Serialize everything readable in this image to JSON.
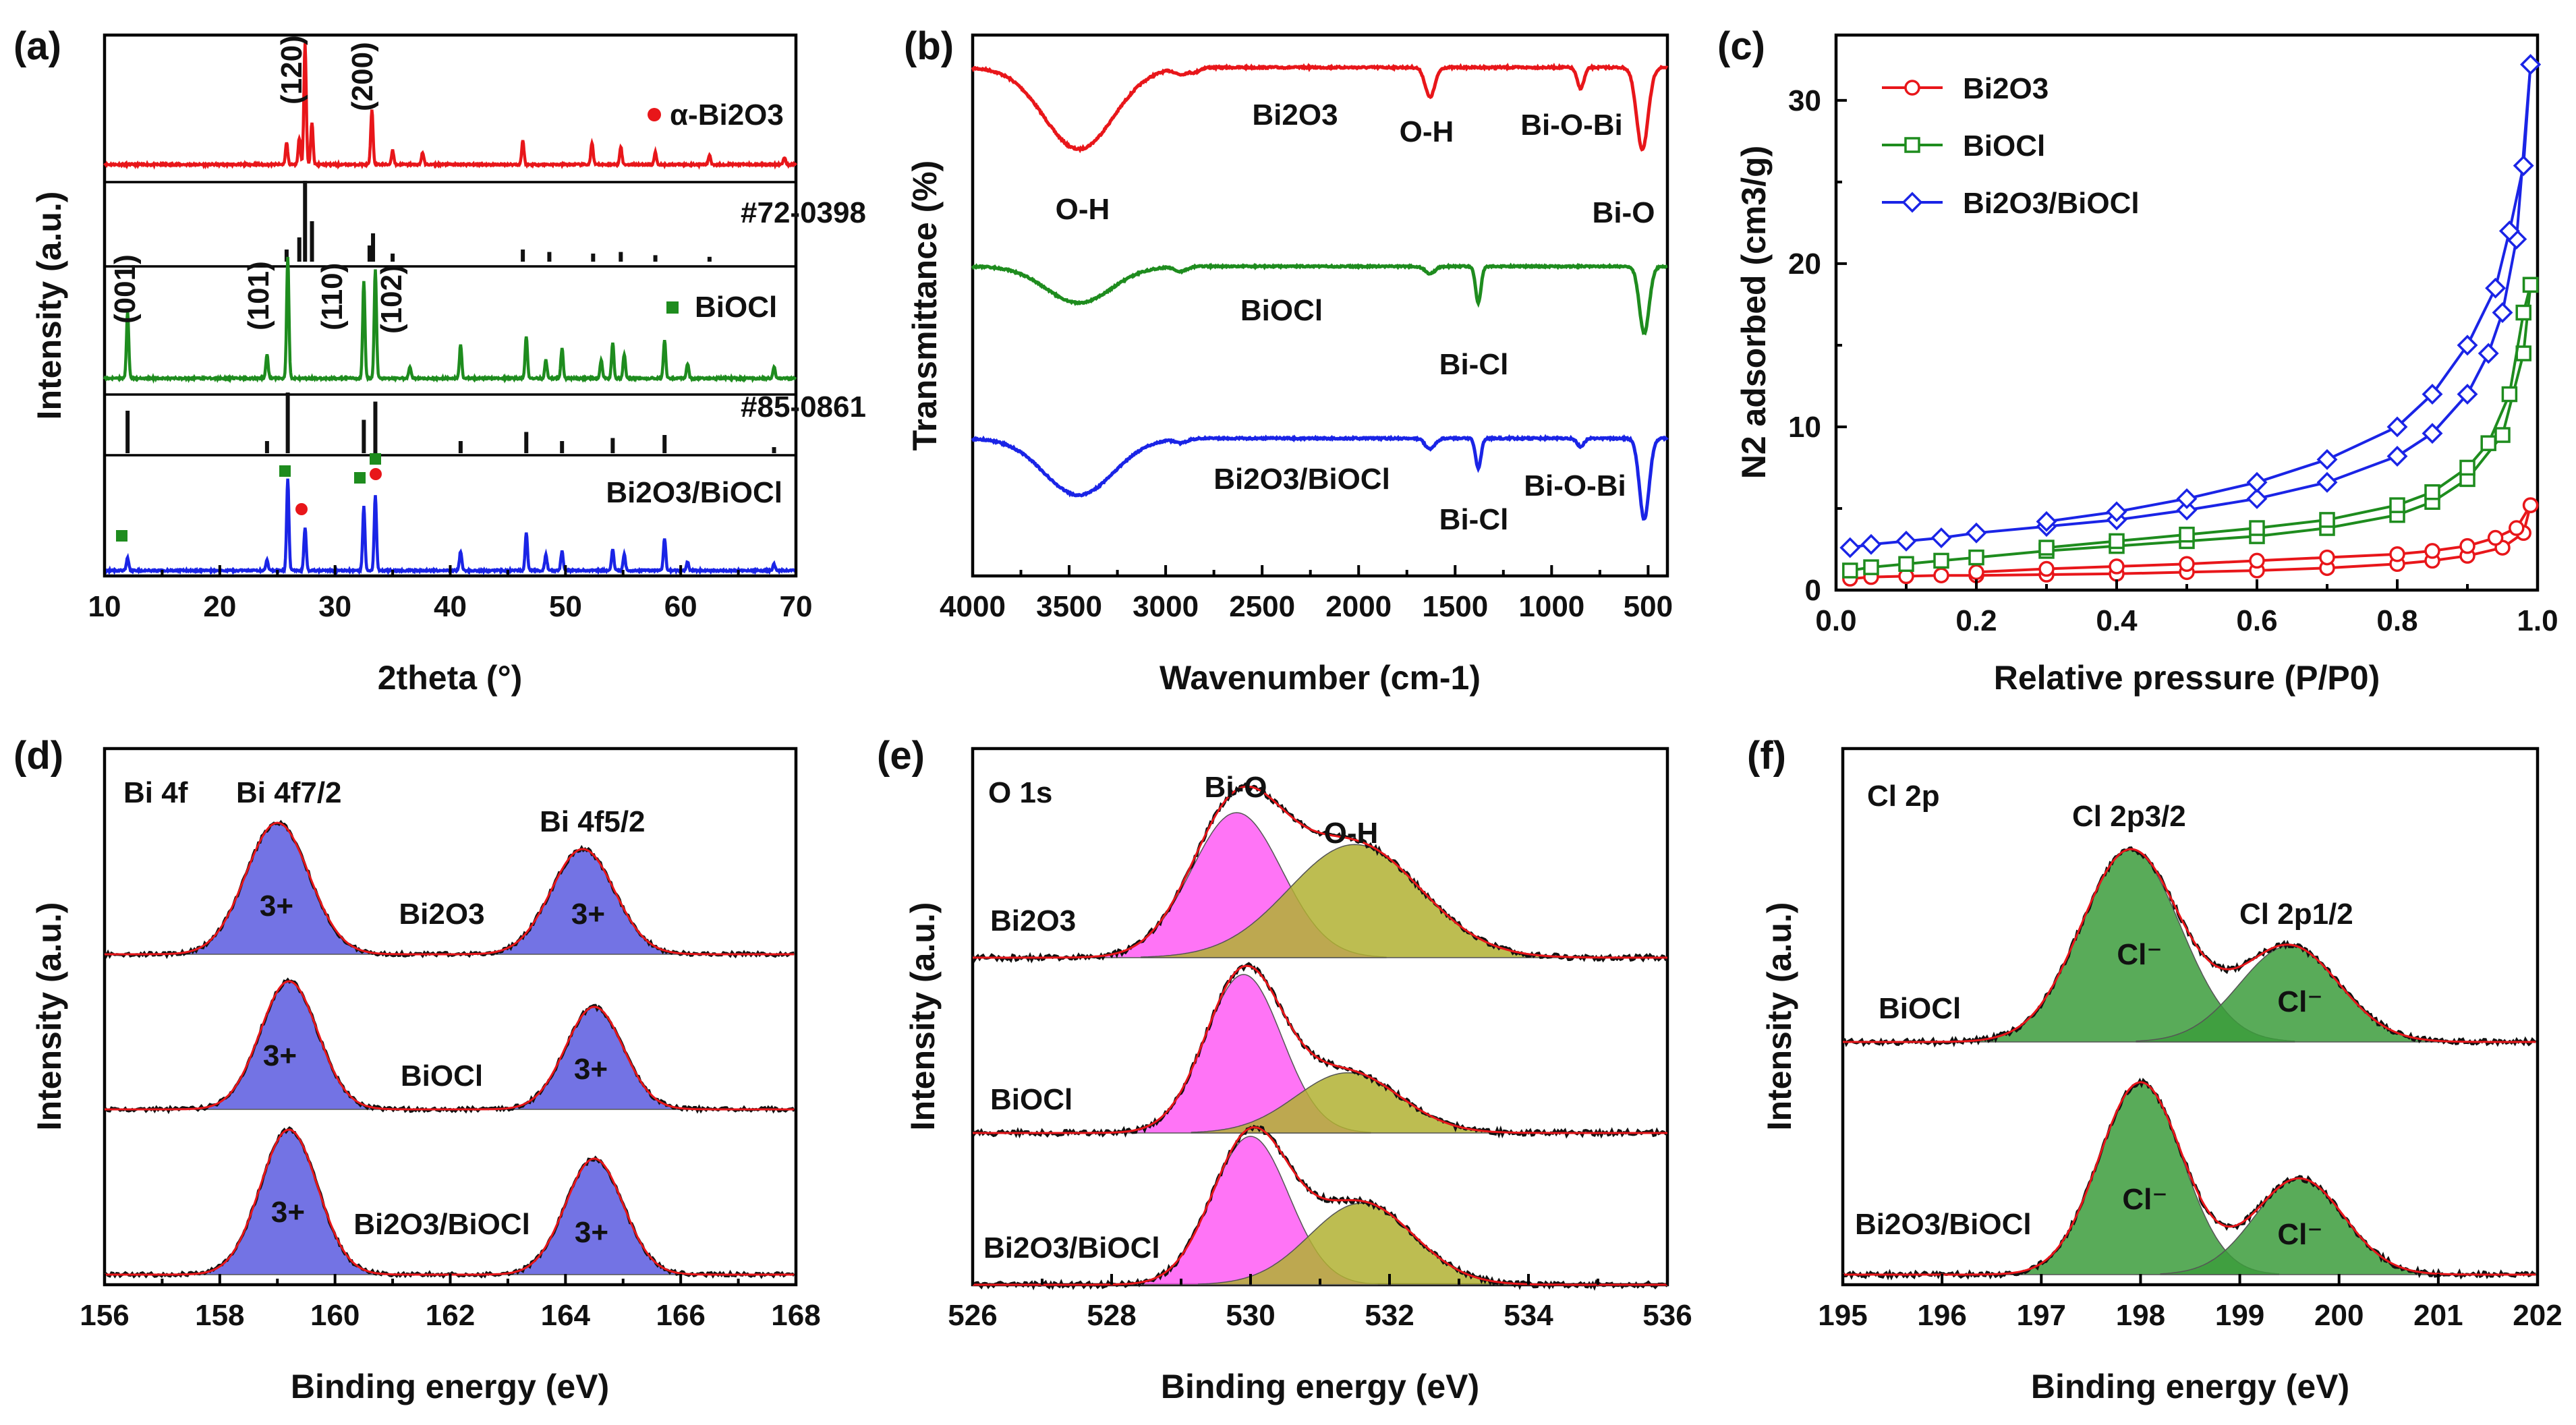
{
  "chart_data": [
    {
      "panel": "(a)",
      "type": "line",
      "xlabel": "2theta (°)",
      "ylabel": "Intensity (a.u.)",
      "xlim": [
        10,
        70
      ],
      "xticks": [
        "10",
        "20",
        "30",
        "40",
        "50",
        "60",
        "70"
      ],
      "series": [
        {
          "name": "α-Bi2O3",
          "color": "#e8161a",
          "kind": "pattern",
          "peaks": [
            [
              25.8,
              0.18
            ],
            [
              26.9,
              0.22
            ],
            [
              27.4,
              1.0
            ],
            [
              28.0,
              0.35
            ],
            [
              33.2,
              0.45
            ],
            [
              35.0,
              0.12
            ],
            [
              37.6,
              0.1
            ],
            [
              46.3,
              0.2
            ],
            [
              52.3,
              0.18
            ],
            [
              54.8,
              0.15
            ],
            [
              57.8,
              0.1
            ],
            [
              62.5,
              0.08
            ],
            [
              69.0,
              0.06
            ]
          ]
        },
        {
          "name": "#72-0398",
          "color": "#111111",
          "kind": "sticks",
          "peaks": [
            [
              25.8,
              0.15
            ],
            [
              26.9,
              0.3
            ],
            [
              27.4,
              1.0
            ],
            [
              28.0,
              0.5
            ],
            [
              33.0,
              0.2
            ],
            [
              33.3,
              0.35
            ],
            [
              35.0,
              0.1
            ],
            [
              46.3,
              0.15
            ],
            [
              48.6,
              0.12
            ],
            [
              52.4,
              0.1
            ],
            [
              54.8,
              0.12
            ],
            [
              57.8,
              0.08
            ],
            [
              62.5,
              0.06
            ]
          ]
        },
        {
          "name": "BiOCl",
          "color": "#1e8c1e",
          "kind": "pattern",
          "peaks": [
            [
              12.0,
              0.55
            ],
            [
              24.1,
              0.2
            ],
            [
              25.9,
              1.0
            ],
            [
              32.5,
              0.8
            ],
            [
              33.5,
              0.9
            ],
            [
              36.5,
              0.1
            ],
            [
              40.9,
              0.28
            ],
            [
              46.6,
              0.35
            ],
            [
              48.3,
              0.15
            ],
            [
              49.7,
              0.25
            ],
            [
              53.1,
              0.15
            ],
            [
              54.1,
              0.3
            ],
            [
              55.1,
              0.2
            ],
            [
              58.6,
              0.32
            ],
            [
              60.6,
              0.12
            ],
            [
              68.1,
              0.1
            ]
          ]
        },
        {
          "name": "#85-0861",
          "color": "#111111",
          "kind": "sticks",
          "peaks": [
            [
              12.0,
              0.7
            ],
            [
              24.1,
              0.2
            ],
            [
              25.9,
              1.0
            ],
            [
              32.5,
              0.55
            ],
            [
              33.5,
              0.85
            ],
            [
              40.9,
              0.2
            ],
            [
              46.6,
              0.35
            ],
            [
              49.7,
              0.2
            ],
            [
              54.1,
              0.25
            ],
            [
              58.6,
              0.3
            ],
            [
              68.1,
              0.1
            ]
          ]
        },
        {
          "name": "Bi2O3/BiOCl",
          "color": "#1a24e6",
          "kind": "pattern",
          "peaks": [
            [
              12.0,
              0.12
            ],
            [
              24.1,
              0.1
            ],
            [
              25.9,
              0.85
            ],
            [
              27.4,
              0.4
            ],
            [
              32.5,
              0.6
            ],
            [
              33.5,
              0.7
            ],
            [
              40.9,
              0.18
            ],
            [
              46.6,
              0.35
            ],
            [
              48.3,
              0.15
            ],
            [
              49.7,
              0.18
            ],
            [
              54.1,
              0.2
            ],
            [
              55.1,
              0.15
            ],
            [
              58.6,
              0.3
            ],
            [
              60.6,
              0.08
            ],
            [
              68.1,
              0.06
            ]
          ]
        }
      ],
      "annotations": [
        "(120)",
        "(200)",
        "(001)",
        "(101)",
        "(110)",
        "(102)"
      ],
      "legend": [
        "α-Bi2O3",
        "BiOCl"
      ]
    },
    {
      "panel": "(b)",
      "type": "line",
      "xlabel": "Wavenumber (cm-1)",
      "ylabel": "Transmittance (%)",
      "xlim": [
        4000,
        400
      ],
      "xticks": [
        "4000",
        "3500",
        "3000",
        "2500",
        "2000",
        "1500",
        "1000",
        "500"
      ],
      "series": [
        {
          "name": "Bi2O3",
          "color": "#e8161a",
          "bands": [
            [
              3450,
              0.55,
              180
            ],
            [
              2920,
              0.04,
              30
            ],
            [
              2850,
              0.03,
              25
            ],
            [
              1630,
              0.2,
              25
            ],
            [
              850,
              0.14,
              18
            ],
            [
              530,
              0.55,
              30
            ]
          ]
        },
        {
          "name": "BiOCl",
          "color": "#1e8c1e",
          "bands": [
            [
              3450,
              0.3,
              170
            ],
            [
              2920,
              0.04,
              30
            ],
            [
              1630,
              0.06,
              25
            ],
            [
              1380,
              0.3,
              14
            ],
            [
              520,
              0.55,
              25
            ]
          ]
        },
        {
          "name": "Bi2O3/BiOCl",
          "color": "#1a24e6",
          "bands": [
            [
              3450,
              0.42,
              180
            ],
            [
              2920,
              0.03,
              30
            ],
            [
              1630,
              0.08,
              25
            ],
            [
              1380,
              0.22,
              14
            ],
            [
              850,
              0.06,
              18
            ],
            [
              520,
              0.6,
              25
            ]
          ]
        }
      ],
      "annotations": [
        "O-H",
        "O-H",
        "Bi-O-Bi",
        "Bi-O",
        "Bi-Cl",
        "Bi-Cl",
        "Bi-O-Bi"
      ]
    },
    {
      "panel": "(c)",
      "type": "line",
      "xlabel": "Relative pressure (P/P0)",
      "ylabel": "N2 adsorbed (cm3/g)",
      "xlim": [
        0.0,
        1.0
      ],
      "ylim": [
        0,
        34
      ],
      "xticks": [
        "0.0",
        "0.2",
        "0.4",
        "0.6",
        "0.8",
        "1.0"
      ],
      "yticks": [
        "0",
        "10",
        "20",
        "30"
      ],
      "series": [
        {
          "name": "Bi2O3",
          "color": "#e8161a",
          "marker": "circle",
          "adsorption": [
            [
              0.02,
              0.7
            ],
            [
              0.05,
              0.8
            ],
            [
              0.1,
              0.85
            ],
            [
              0.15,
              0.9
            ],
            [
              0.2,
              0.9
            ],
            [
              0.3,
              0.95
            ],
            [
              0.4,
              1.0
            ],
            [
              0.5,
              1.1
            ],
            [
              0.6,
              1.2
            ],
            [
              0.7,
              1.35
            ],
            [
              0.8,
              1.6
            ],
            [
              0.85,
              1.8
            ],
            [
              0.9,
              2.1
            ],
            [
              0.95,
              2.6
            ],
            [
              0.98,
              3.5
            ],
            [
              0.99,
              5.2
            ]
          ],
          "desorption": [
            [
              0.99,
              5.2
            ],
            [
              0.97,
              3.8
            ],
            [
              0.94,
              3.2
            ],
            [
              0.9,
              2.7
            ],
            [
              0.85,
              2.4
            ],
            [
              0.8,
              2.2
            ],
            [
              0.7,
              2.0
            ],
            [
              0.6,
              1.8
            ],
            [
              0.5,
              1.6
            ],
            [
              0.4,
              1.45
            ],
            [
              0.3,
              1.3
            ],
            [
              0.2,
              1.1
            ]
          ]
        },
        {
          "name": "BiOCl",
          "color": "#1e8c1e",
          "marker": "square",
          "adsorption": [
            [
              0.02,
              1.2
            ],
            [
              0.05,
              1.4
            ],
            [
              0.1,
              1.6
            ],
            [
              0.15,
              1.8
            ],
            [
              0.2,
              2.0
            ],
            [
              0.3,
              2.4
            ],
            [
              0.4,
              2.7
            ],
            [
              0.5,
              3.0
            ],
            [
              0.6,
              3.3
            ],
            [
              0.7,
              3.8
            ],
            [
              0.8,
              4.6
            ],
            [
              0.85,
              5.4
            ],
            [
              0.9,
              6.8
            ],
            [
              0.95,
              9.5
            ],
            [
              0.98,
              14.5
            ],
            [
              0.99,
              18.7
            ]
          ],
          "desorption": [
            [
              0.99,
              18.7
            ],
            [
              0.98,
              17.0
            ],
            [
              0.96,
              12.0
            ],
            [
              0.93,
              9.0
            ],
            [
              0.9,
              7.5
            ],
            [
              0.85,
              6.0
            ],
            [
              0.8,
              5.2
            ],
            [
              0.7,
              4.3
            ],
            [
              0.6,
              3.8
            ],
            [
              0.5,
              3.4
            ],
            [
              0.4,
              3.0
            ],
            [
              0.3,
              2.6
            ]
          ]
        },
        {
          "name": "Bi2O3/BiOCl",
          "color": "#1a24e6",
          "marker": "diamond",
          "adsorption": [
            [
              0.02,
              2.6
            ],
            [
              0.05,
              2.8
            ],
            [
              0.1,
              3.0
            ],
            [
              0.15,
              3.2
            ],
            [
              0.2,
              3.5
            ],
            [
              0.3,
              3.9
            ],
            [
              0.4,
              4.3
            ],
            [
              0.5,
              4.9
            ],
            [
              0.6,
              5.6
            ],
            [
              0.7,
              6.6
            ],
            [
              0.8,
              8.2
            ],
            [
              0.85,
              9.6
            ],
            [
              0.9,
              12.0
            ],
            [
              0.93,
              14.5
            ],
            [
              0.95,
              17.0
            ],
            [
              0.97,
              21.5
            ],
            [
              0.99,
              32.2
            ]
          ],
          "desorption": [
            [
              0.99,
              32.2
            ],
            [
              0.98,
              26.0
            ],
            [
              0.96,
              22.0
            ],
            [
              0.94,
              18.5
            ],
            [
              0.9,
              15.0
            ],
            [
              0.85,
              12.0
            ],
            [
              0.8,
              10.0
            ],
            [
              0.7,
              8.0
            ],
            [
              0.6,
              6.6
            ],
            [
              0.5,
              5.6
            ],
            [
              0.4,
              4.8
            ],
            [
              0.3,
              4.2
            ]
          ]
        }
      ],
      "legend": [
        "Bi2O3",
        "BiOCl",
        "Bi2O3/BiOCl"
      ],
      "legend_position": "top-left"
    },
    {
      "panel": "(d)",
      "type": "line",
      "title": "Bi 4f",
      "xlabel": "Binding energy (eV)",
      "ylabel": "Intensity (a.u.)",
      "xlim": [
        156,
        168
      ],
      "xticks": [
        "156",
        "158",
        "160",
        "162",
        "164",
        "166",
        "168"
      ],
      "fill_color": "#5a5adf",
      "series": [
        {
          "name": "Bi2O3",
          "peaks": [
            [
              159.0,
              1.0,
              0.55
            ],
            [
              164.3,
              0.8,
              0.55
            ]
          ]
        },
        {
          "name": "BiOCl",
          "peaks": [
            [
              159.2,
              1.0,
              0.5
            ],
            [
              164.5,
              0.8,
              0.5
            ]
          ]
        },
        {
          "name": "Bi2O3/BiOCl",
          "peaks": [
            [
              159.2,
              1.0,
              0.5
            ],
            [
              164.5,
              0.8,
              0.5
            ]
          ]
        }
      ],
      "peak_labels": [
        "Bi 4f7/2",
        "Bi 4f5/2"
      ],
      "state_labels": [
        "3+",
        "3+",
        "3+",
        "3+",
        "3+",
        "3+"
      ]
    },
    {
      "panel": "(e)",
      "type": "line",
      "title": "O 1s",
      "xlabel": "Binding energy (eV)",
      "ylabel": "Intensity (a.u.)",
      "xlim": [
        526,
        536
      ],
      "xticks": [
        "526",
        "528",
        "530",
        "532",
        "534",
        "536"
      ],
      "fill_colors": [
        "#ff5cf5",
        "#b2b232"
      ],
      "series": [
        {
          "name": "Bi2O3",
          "peaks": [
            [
              529.8,
              1.0,
              0.65
            ],
            [
              531.5,
              0.78,
              0.95
            ]
          ]
        },
        {
          "name": "BiOCl",
          "peaks": [
            [
              529.9,
              1.0,
              0.55
            ],
            [
              531.4,
              0.38,
              0.75
            ]
          ]
        },
        {
          "name": "Bi2O3/BiOCl",
          "peaks": [
            [
              530.0,
              1.0,
              0.55
            ],
            [
              531.6,
              0.55,
              0.75
            ]
          ]
        }
      ],
      "peak_labels": [
        "Bi-O",
        "O-H"
      ]
    },
    {
      "panel": "(f)",
      "type": "line",
      "title": "Cl 2p",
      "xlabel": "Binding energy (eV)",
      "ylabel": "Intensity (a.u.)",
      "xlim": [
        195,
        202
      ],
      "xticks": [
        "195",
        "196",
        "197",
        "198",
        "199",
        "200",
        "201",
        "202"
      ],
      "fill_color": "#3c9c3c",
      "series": [
        {
          "name": "BiOCl",
          "peaks": [
            [
              197.9,
              1.0,
              0.5
            ],
            [
              199.5,
              0.5,
              0.5
            ]
          ]
        },
        {
          "name": "Bi2O3/BiOCl",
          "peaks": [
            [
              198.0,
              1.0,
              0.42
            ],
            [
              199.6,
              0.5,
              0.45
            ]
          ]
        }
      ],
      "peak_labels": [
        "Cl 2p3/2",
        "Cl 2p1/2"
      ],
      "state_labels": [
        "Cl⁻",
        "Cl⁻",
        "Cl⁻",
        "Cl⁻"
      ]
    }
  ]
}
